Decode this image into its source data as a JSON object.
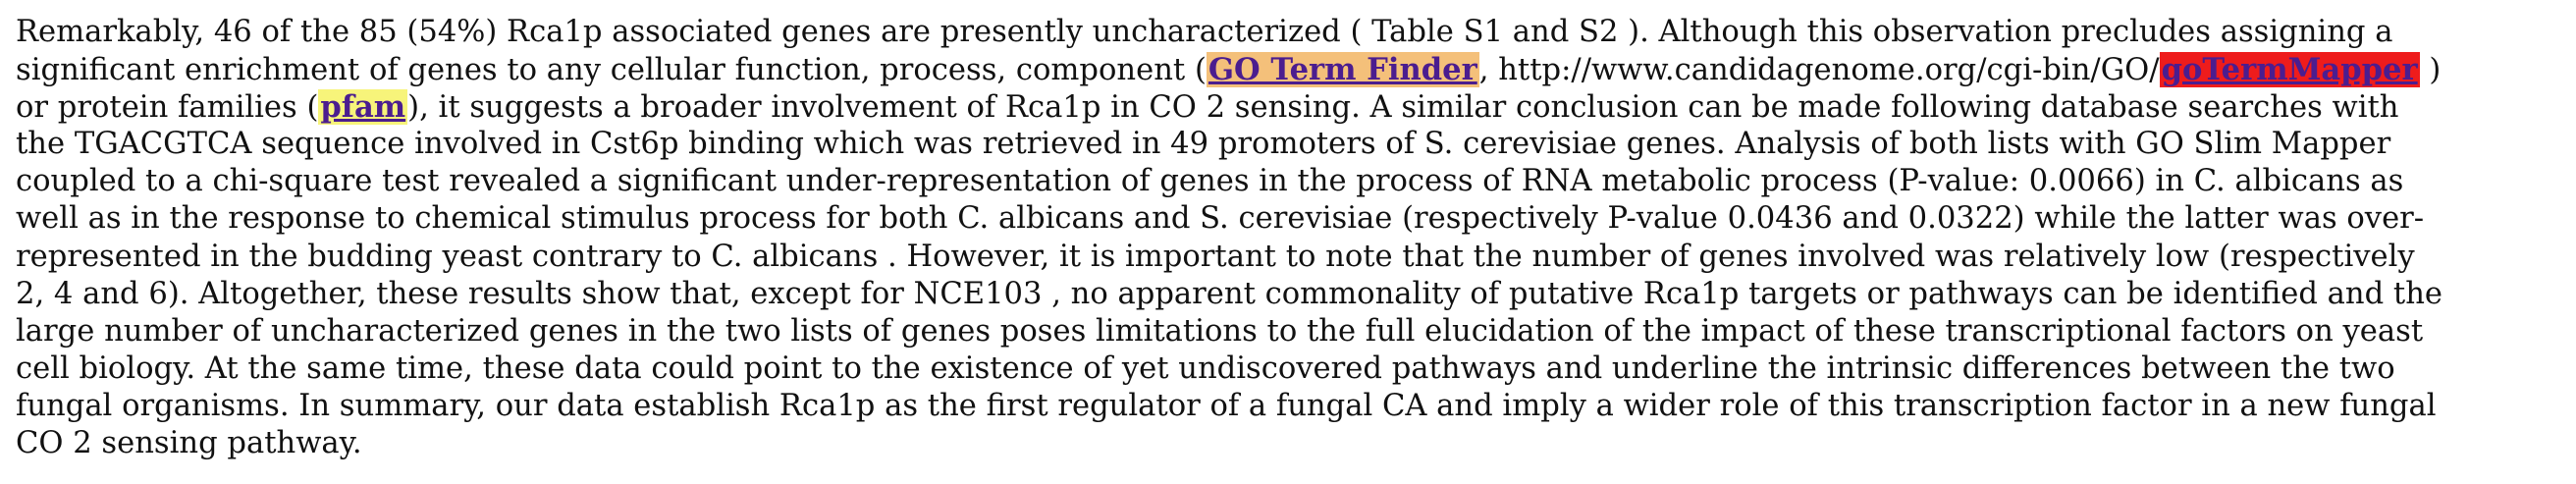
{
  "lines": {
    "l1": "Remarkably, 46 of the 85 (54%) Rca1p associated genes are presently uncharacterized ( Table S1 and S2 ). Although this observation precludes assigning a",
    "l2_pre": "significant enrichment of genes to any cellular function, process, component (",
    "l2_mid": ", http://www.candidagenome.org/cgi-bin/GO/",
    "l2_post": " )",
    "l3_pre": "or protein families (",
    "l3_post": "), it suggests a broader involvement of Rca1p in CO 2 sensing. A similar conclusion can be made following database searches with",
    "l4": "the TGACGTCA sequence involved in Cst6p binding which was retrieved in 49 promoters of S. cerevisiae genes. Analysis of both lists with GO Slim Mapper",
    "l5": "coupled to a chi-square test revealed a significant under-representation of genes in the process of RNA metabolic process (P-value: 0.0066) in C. albicans as",
    "l6": "well as in the response to chemical stimulus process for both C. albicans and S. cerevisiae (respectively P-value 0.0436 and 0.0322) while the latter was over-",
    "l7": "represented in the budding yeast contrary to C. albicans . However, it is important to note that the number of genes involved was relatively low (respectively",
    "l8": "2, 4 and 6). Altogether, these results show that, except for NCE103 , no apparent commonality of putative Rca1p targets or pathways can be identified and the",
    "l9": "large number of uncharacterized genes in the two lists of genes poses limitations to the full elucidation of the impact of these transcriptional factors on yeast",
    "l10": "cell biology. At the same time, these data could point to the existence of yet undiscovered pathways and underline the intrinsic differences between the two",
    "l11": "fungal organisms. In summary, our data establish Rca1p as the first regulator of a fungal CA and imply a wider role of this transcription factor in a new fungal",
    "l12": "CO 2 sensing pathway."
  },
  "links": {
    "go_term_finder": "GO Term Finder",
    "go_term_mapper": "goTermMapper",
    "pfam": "pfam"
  },
  "colors": {
    "orange_highlight": "#f4c07a",
    "red_highlight": "#ee1c1c",
    "yellow_highlight": "#f7f47a",
    "link_text": "#4b1d8f"
  }
}
